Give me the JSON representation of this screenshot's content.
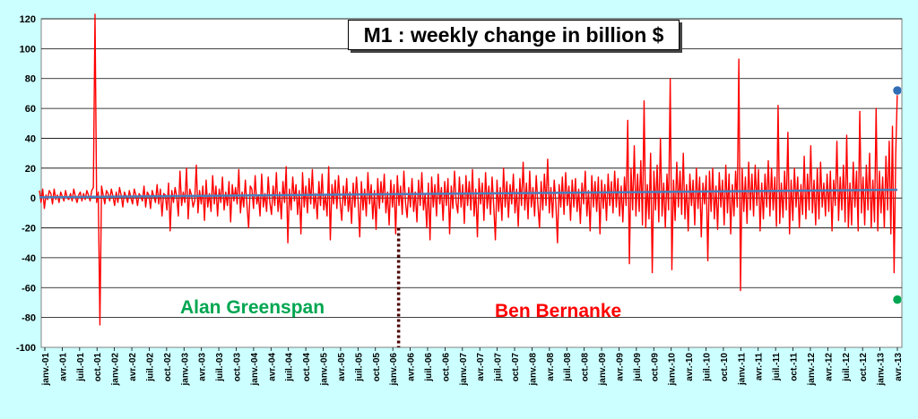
{
  "chart_data": {
    "type": "line",
    "title": "M1 : weekly change in billion $",
    "ylim": [
      -100,
      120
    ],
    "yticks": [
      -100,
      -80,
      -60,
      -40,
      -20,
      0,
      20,
      40,
      60,
      80,
      100,
      120
    ],
    "grid": true,
    "x_start": "2001-01",
    "x_end": "2013-04",
    "xtick_labels": [
      "janv.-01",
      "avr.-01",
      "juil.-01",
      "oct.-01",
      "janv.-02",
      "avr.-02",
      "juil.-02",
      "oct.-02",
      "janv.-03",
      "avr.-03",
      "juil.-03",
      "oct.-03",
      "janv.-04",
      "avr.-04",
      "juil.-04",
      "oct.-04",
      "janv.-05",
      "avr.-05",
      "juil.-05",
      "oct.-05",
      "janv.-06",
      "avr.-06",
      "juil.-06",
      "oct.-06",
      "janv.-07",
      "avr.-07",
      "juil.-07",
      "oct.-07",
      "janv.-08",
      "avr.-08",
      "juil.-08",
      "oct.-08",
      "janv.-09",
      "avr.-09",
      "juil.-09",
      "oct.-09",
      "janv.-10",
      "avr.-10",
      "juil.-10",
      "oct.-10",
      "janv.-11",
      "avr.-11",
      "juil.-11",
      "oct.-11",
      "janv.-12",
      "avr.-12",
      "juil.-12",
      "oct.-12",
      "janv.-13",
      "avr.-13"
    ],
    "series": [
      {
        "kind": "weekly_change",
        "color": "#ff0000",
        "values": [
          5,
          -3,
          6,
          -7,
          2,
          -1,
          5,
          3,
          -4,
          6,
          -1,
          2,
          -3,
          4,
          1,
          -2,
          5,
          0,
          -1,
          3,
          -2,
          6,
          1,
          -3,
          2,
          4,
          -2,
          3,
          -1,
          5,
          2,
          -2,
          5,
          7,
          123,
          -3,
          4,
          -85,
          8,
          2,
          -4,
          5,
          3,
          -2,
          6,
          1,
          -5,
          4,
          -3,
          7,
          2,
          -6,
          4,
          1,
          -3,
          5,
          0,
          -4,
          6,
          2,
          -5,
          3,
          1,
          -2,
          8,
          -6,
          4,
          2,
          -7,
          5,
          1,
          -3,
          9,
          -4,
          6,
          -12,
          3,
          2,
          -8,
          10,
          -22,
          5,
          -3,
          7,
          1,
          -12,
          18,
          -5,
          4,
          -3,
          20,
          -14,
          6,
          2,
          -6,
          -2,
          22,
          -10,
          5,
          -4,
          8,
          -15,
          12,
          -6,
          3,
          -9,
          15,
          -4,
          8,
          -12,
          6,
          -3,
          14,
          -8,
          4,
          -5,
          11,
          -16,
          9,
          -2,
          7,
          -4,
          19,
          -10,
          4,
          -6,
          12,
          -5,
          -20,
          8,
          6,
          -7,
          15,
          -4,
          2,
          -12,
          16,
          -6,
          3,
          -9,
          14,
          -3,
          -11,
          8,
          -5,
          17,
          -9,
          4,
          -14,
          11,
          -3,
          21,
          -30,
          6,
          -8,
          14,
          -2,
          9,
          -11,
          5,
          -24,
          17,
          -6,
          8,
          -10,
          13,
          -4,
          19,
          -7,
          3,
          -14,
          11,
          -5,
          16,
          -8,
          2,
          -12,
          21,
          -28,
          9,
          -4,
          12,
          -7,
          15,
          -3,
          -15,
          8,
          -5,
          13,
          -9,
          4,
          -17,
          10,
          -6,
          14,
          -2,
          -26,
          11,
          -8,
          6,
          -12,
          17,
          -4,
          9,
          -14,
          5,
          -21,
          13,
          -7,
          11,
          -3,
          16,
          -10,
          4,
          -18,
          12,
          -6,
          9,
          -24,
          15,
          -5,
          8,
          -11,
          18,
          -3,
          -13,
          7,
          -6,
          13,
          -9,
          4,
          -16,
          12,
          -5,
          17,
          -8,
          3,
          -20,
          10,
          -28,
          14,
          -6,
          9,
          -12,
          16,
          -4,
          7,
          -15,
          11,
          -5,
          13,
          -24,
          8,
          -7,
          18,
          -3,
          -10,
          14,
          -6,
          9,
          -17,
          15,
          -5,
          11,
          -8,
          19,
          -12,
          6,
          -26,
          13,
          -4,
          10,
          -15,
          17,
          -7,
          8,
          -11,
          14,
          -5,
          -28,
          12,
          -9,
          7,
          -15,
          20,
          -6,
          11,
          -13,
          9,
          -4,
          16,
          -10,
          6,
          -19,
          13,
          -5,
          24,
          -8,
          10,
          -14,
          18,
          -6,
          7,
          -12,
          15,
          -4,
          -20,
          11,
          -8,
          16,
          -5,
          26,
          -10,
          7,
          -13,
          12,
          -3,
          -30,
          9,
          -6,
          14,
          -11,
          17,
          -5,
          8,
          -15,
          12,
          -6,
          13,
          -9,
          6,
          -17,
          10,
          -4,
          18,
          -12,
          5,
          -22,
          15,
          -6,
          11,
          -9,
          14,
          -24,
          12,
          -7,
          9,
          -15,
          16,
          -5,
          11,
          -10,
          18,
          -6,
          13,
          -12,
          8,
          -16,
          14,
          -5,
          52,
          -44,
          20,
          -8,
          35,
          -12,
          16,
          -9,
          25,
          -18,
          65,
          -20,
          9,
          -14,
          30,
          -50,
          18,
          -8,
          22,
          -16,
          40,
          -12,
          10,
          -20,
          16,
          -8,
          80,
          -48,
          12,
          -15,
          24,
          -6,
          18,
          -11,
          30,
          -14,
          9,
          -22,
          16,
          -5,
          12,
          -18,
          20,
          -7,
          14,
          -26,
          10,
          -4,
          15,
          -42,
          18,
          -9,
          20,
          -14,
          8,
          -21,
          17,
          -6,
          12,
          -18,
          22,
          -10,
          16,
          -24,
          9,
          -12,
          18,
          -6,
          93,
          -62,
          20,
          -9,
          14,
          -17,
          24,
          -8,
          16,
          -12,
          22,
          -5,
          19,
          -22,
          10,
          -14,
          16,
          -6,
          25,
          -12,
          20,
          -8,
          14,
          -19,
          62,
          -17,
          10,
          -13,
          18,
          -8,
          44,
          -24,
          12,
          -15,
          20,
          -6,
          14,
          -20,
          9,
          -11,
          28,
          -14,
          16,
          -8,
          35,
          -10,
          12,
          -18,
          20,
          -14,
          24,
          -6,
          10,
          -12,
          16,
          -9,
          18,
          -22,
          12,
          -5,
          38,
          -15,
          14,
          -8,
          22,
          -16,
          42,
          -20,
          10,
          -18,
          24,
          -6,
          18,
          -22,
          58,
          -10,
          14,
          -18,
          22,
          -8,
          30,
          -20,
          12,
          -16,
          60,
          -22,
          18,
          -10,
          14,
          -20,
          28,
          -8,
          38,
          -24,
          48,
          -50,
          30,
          72
        ]
      },
      {
        "kind": "trend",
        "color": "#4a7ebb",
        "values": [
          0.5,
          5.5
        ]
      }
    ],
    "markers": [
      {
        "color": "#2f6db5",
        "value": 72,
        "at": "last"
      },
      {
        "color": "#00a651",
        "value": -68,
        "at": "last"
      }
    ],
    "divider_at": "2006-02",
    "annotations": [
      {
        "text": "Alan Greenspan",
        "color": "#00a651"
      },
      {
        "text": "Ben Bernanke",
        "color": "#ff0000"
      }
    ]
  }
}
